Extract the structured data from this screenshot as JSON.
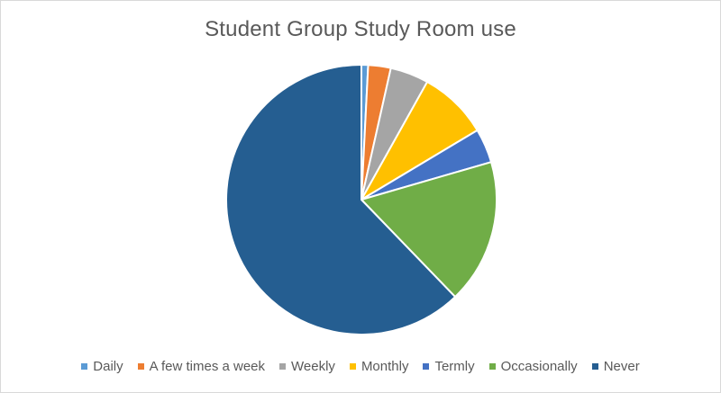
{
  "chart_data": {
    "type": "pie",
    "title": "Student Group Study Room use",
    "legend_position": "bottom",
    "slices": [
      {
        "label": "Daily",
        "value": 0.8,
        "color": "#5B9BD5"
      },
      {
        "label": "A few times a week",
        "value": 2.7,
        "color": "#ED7D31"
      },
      {
        "label": "Weekly",
        "value": 4.6,
        "color": "#A5A5A5"
      },
      {
        "label": "Monthly",
        "value": 8.3,
        "color": "#FFC000"
      },
      {
        "label": "Termly",
        "value": 4.1,
        "color": "#4472C4"
      },
      {
        "label": "Occasionally",
        "value": 17.3,
        "color": "#70AD47"
      },
      {
        "label": "Never",
        "value": 62.2,
        "color": "#255E91"
      }
    ]
  }
}
